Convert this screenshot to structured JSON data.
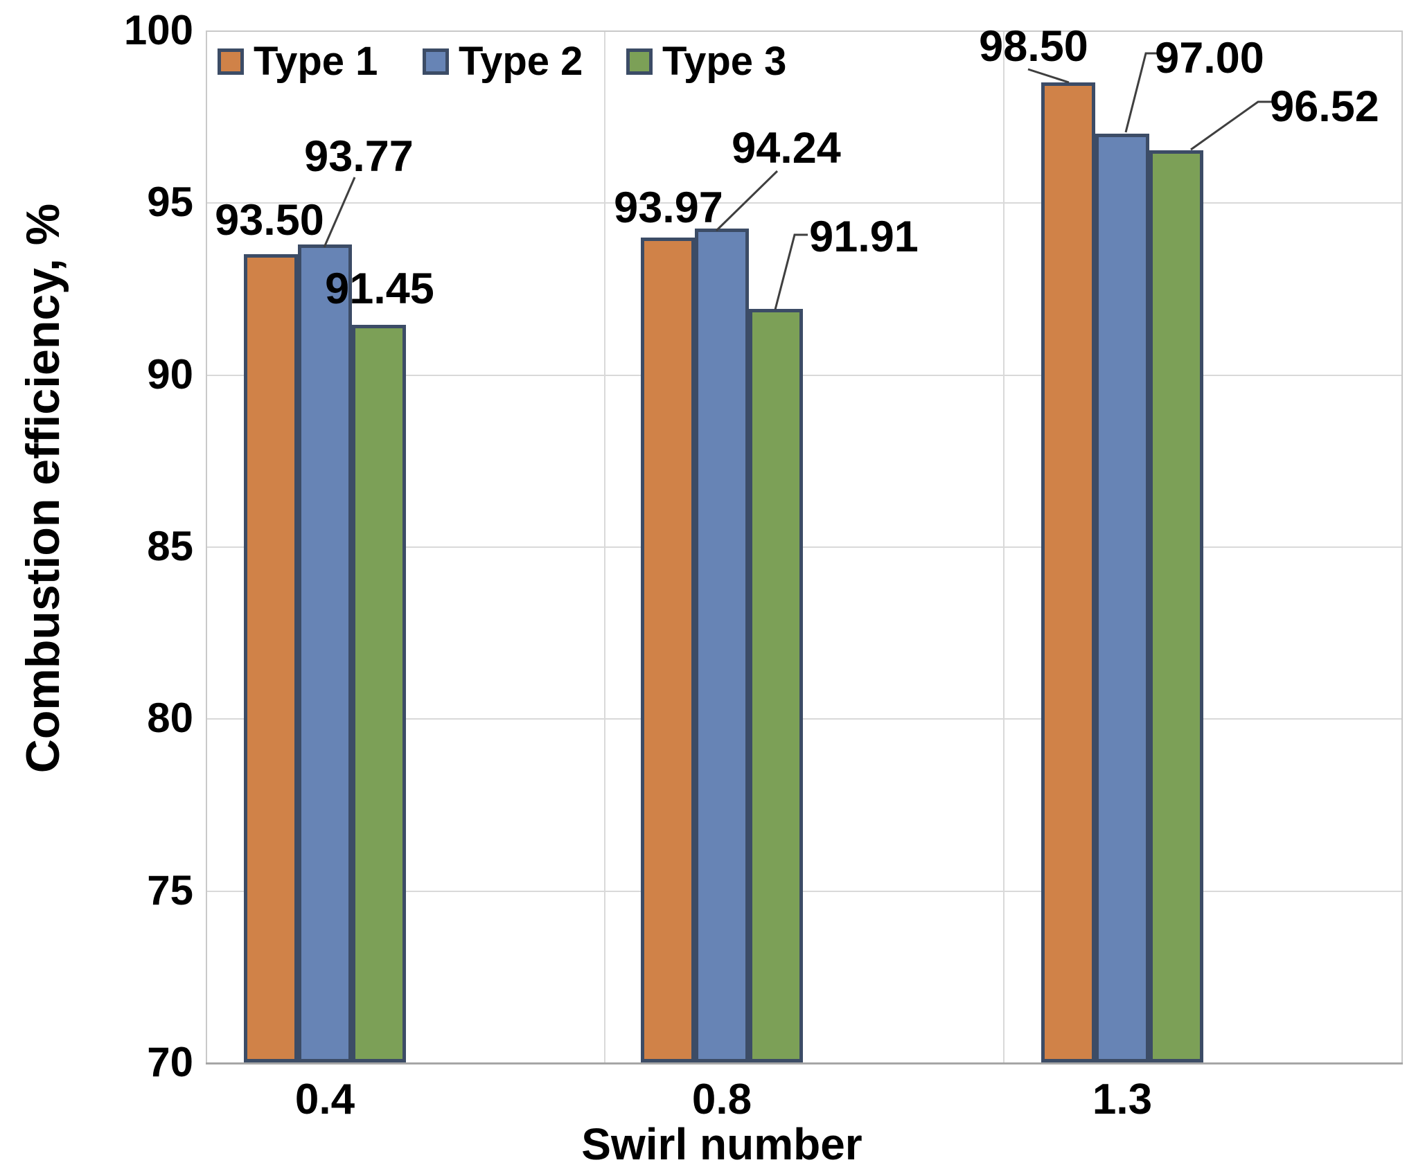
{
  "chart_data": {
    "type": "bar",
    "title": "",
    "xlabel": "Swirl number",
    "ylabel": "Combustion efficiency, %",
    "ylim": [
      70,
      100
    ],
    "y_ticks": [
      70,
      75,
      80,
      85,
      90,
      95,
      100
    ],
    "categories": [
      "0.4",
      "0.8",
      "1.3"
    ],
    "series": [
      {
        "name": "Type 1",
        "color": "#d08248",
        "values": [
          93.5,
          93.97,
          98.5
        ]
      },
      {
        "name": "Type 2",
        "color": "#6784b5",
        "values": [
          93.77,
          94.24,
          97.0
        ]
      },
      {
        "name": "Type 3",
        "color": "#7ca057",
        "values": [
          91.45,
          91.91,
          96.52
        ]
      }
    ],
    "data_label_format": "2dp",
    "legend_position": "top-left-inside",
    "grid": true,
    "colors": {
      "bar_border": "#3c4c66",
      "gridline": "#d9d9d9",
      "axis_line": "#a6a6a6",
      "leader_line": "#3f3f3f",
      "text": "#000000",
      "background": "#ffffff"
    }
  }
}
